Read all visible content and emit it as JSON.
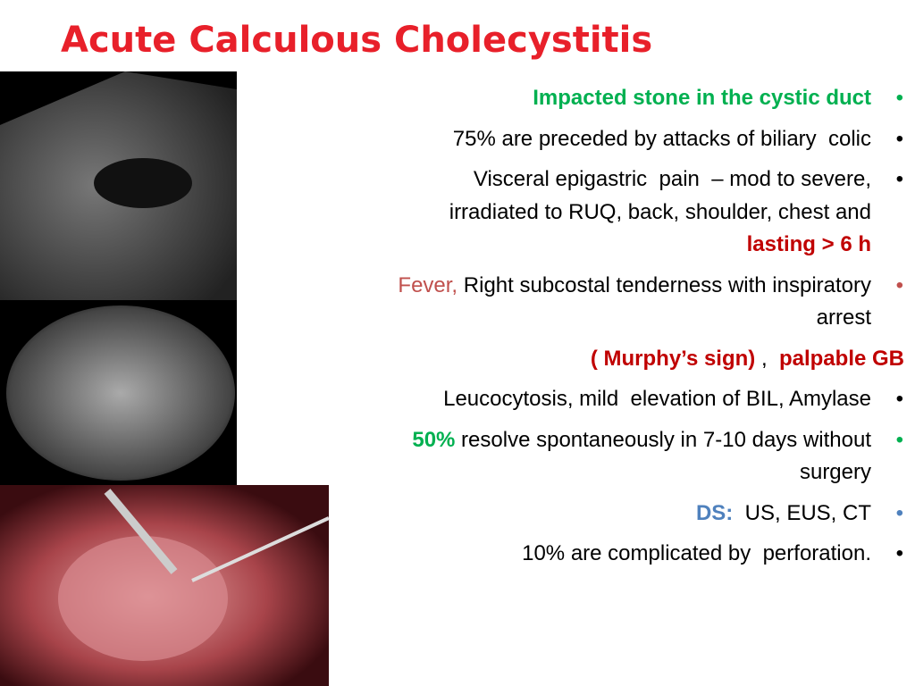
{
  "title": "Acute Calculous Cholecystitis",
  "bullets": [
    {
      "bullet": true,
      "bullet_color": "#00b050",
      "lines": [
        [
          {
            "text": "Impacted stone in the cystic duct",
            "color": "#00b050",
            "bold": true
          }
        ]
      ]
    },
    {
      "bullet": true,
      "bullet_color": "#000000",
      "lines": [
        [
          {
            "text": "75% are preceded by attacks of biliary  colic"
          }
        ]
      ]
    },
    {
      "bullet": true,
      "bullet_color": "#000000",
      "lines": [
        [
          {
            "text": "Visceral epigastric  pain  – mod to severe,"
          }
        ],
        [
          {
            "text": "irradiated to RUQ, back, shoulder, chest and"
          }
        ],
        [
          {
            "text": "lasting > 6 h",
            "color": "#c00000",
            "bold": true
          }
        ]
      ]
    },
    {
      "bullet": true,
      "bullet_color": "#c0504d",
      "lines": [
        [
          {
            "text": "Fever,",
            "color": "#c0504d"
          },
          {
            "text": " Right subcostal tenderness with inspiratory"
          }
        ],
        [
          {
            "text": "arrest"
          }
        ]
      ]
    },
    {
      "bullet": false,
      "lines": [
        [
          {
            "text": "( Murphy’s sign)",
            "color": "#c00000",
            "bold": true
          },
          {
            "text": " ,  "
          },
          {
            "text": "palpable GB",
            "color": "#c00000",
            "bold": true
          }
        ]
      ]
    },
    {
      "bullet": true,
      "bullet_color": "#000000",
      "lines": [
        [
          {
            "text": "Leucocytosis, mild  elevation of BIL, Amylase"
          }
        ]
      ]
    },
    {
      "bullet": true,
      "bullet_color": "#00b050",
      "lines": [
        [
          {
            "text": "50%",
            "color": "#00b050",
            "bold": true
          },
          {
            "text": " resolve spontaneously in 7-10 days without"
          }
        ],
        [
          {
            "text": "surgery"
          }
        ]
      ]
    },
    {
      "bullet": true,
      "bullet_color": "#4f81bd",
      "lines": [
        [
          {
            "text": "DS:",
            "color": "#4f81bd",
            "bold": true
          },
          {
            "text": "  US, EUS, CT"
          }
        ]
      ]
    },
    {
      "bullet": true,
      "bullet_color": "#000000",
      "lines": [
        [
          {
            "text": "10% are complicated by  perforation."
          }
        ]
      ]
    }
  ]
}
